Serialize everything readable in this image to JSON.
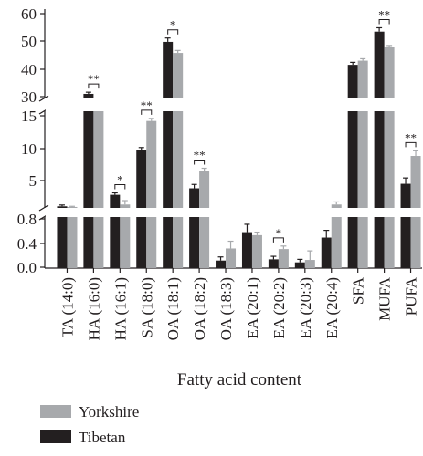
{
  "chart_data": {
    "type": "bar",
    "xlabel": "Fatty acid content",
    "ylabel": "",
    "axis_break": true,
    "y_segments": [
      {
        "range": [
          0,
          0.8
        ],
        "ticks": [
          "0.0",
          "0.4",
          "0.8"
        ]
      },
      {
        "range": [
          0.8,
          15
        ],
        "ticks": [
          "5",
          "10",
          "15"
        ]
      },
      {
        "range": [
          15,
          60
        ],
        "ticks": [
          "30",
          "40",
          "50",
          "60"
        ]
      }
    ],
    "categories": [
      "TA (14:0)",
      "HA (16:0)",
      "HA (16:1)",
      "SA (18:0)",
      "OA (18:1)",
      "OA (18:2)",
      "OA (18:3)",
      "EA (20:1)",
      "EA (20:2)",
      "EA (20:3)",
      "EA (20:4)",
      "SFA",
      "MUFA",
      "PUFA"
    ],
    "series": [
      {
        "name": "Tibetan",
        "color": "#231f20",
        "values": [
          1.02,
          31.0,
          2.8,
          9.7,
          49.8,
          3.8,
          0.11,
          0.58,
          0.13,
          0.08,
          0.49,
          41.5,
          53.5,
          4.5
        ],
        "errors": [
          0.2,
          0.6,
          0.3,
          0.4,
          1.4,
          0.6,
          0.06,
          0.13,
          0.05,
          0.05,
          0.12,
          0.9,
          1.4,
          0.9
        ]
      },
      {
        "name": "Yorkshire",
        "color": "#a7a9ac",
        "values": [
          0.92,
          28.2,
          1.3,
          14.2,
          45.8,
          6.5,
          0.31,
          0.53,
          0.3,
          0.12,
          1.3,
          43.0,
          47.9,
          8.8
        ],
        "errors": [
          0.1,
          0.3,
          0.6,
          0.4,
          0.9,
          0.4,
          0.12,
          0.05,
          0.05,
          0.15,
          0.4,
          0.7,
          0.6,
          0.8
        ]
      }
    ],
    "significance": [
      {
        "category": "HA (16:0)",
        "label": "**"
      },
      {
        "category": "HA (16:1)",
        "label": "*"
      },
      {
        "category": "SA (18:0)",
        "label": "**"
      },
      {
        "category": "OA (18:1)",
        "label": "*"
      },
      {
        "category": "OA (18:2)",
        "label": "**"
      },
      {
        "category": "EA (20:2)",
        "label": "*"
      },
      {
        "category": "MUFA",
        "label": "**"
      },
      {
        "category": "PUFA",
        "label": "**"
      }
    ],
    "legend": {
      "position": "bottom-left",
      "order": [
        "Yorkshire",
        "Tibetan"
      ]
    },
    "grid": false
  }
}
